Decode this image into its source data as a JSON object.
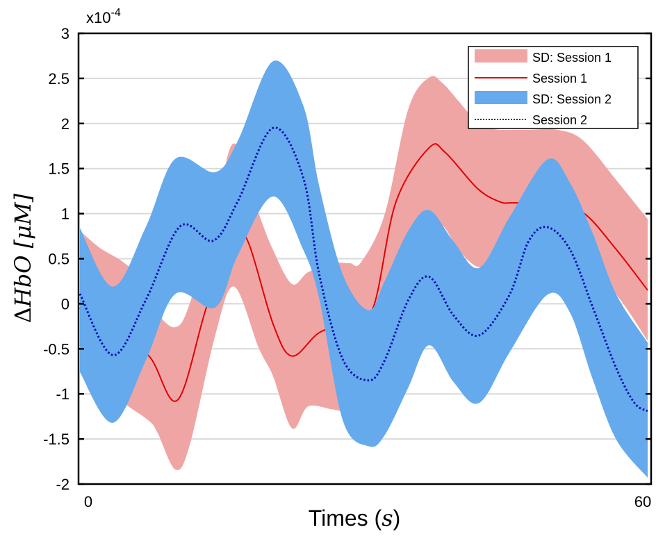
{
  "chart_data": {
    "type": "area",
    "title": "",
    "xlabel_main": "Times (",
    "xlabel_var": "s",
    "xlabel_close": ")",
    "ylabel_delta": "Δ",
    "ylabel_var": "HbO",
    "ylabel_unit": " [μM]",
    "y_multiplier_base": "x10",
    "y_multiplier_exp": "-4",
    "xlim": [
      0,
      60
    ],
    "ylim": [
      -2,
      3
    ],
    "xticks": [
      0,
      60
    ],
    "xtick_labels": [
      "0",
      "60"
    ],
    "yticks": [
      3,
      2.5,
      2,
      1.5,
      1,
      0.5,
      0,
      -0.5,
      -1,
      -1.5,
      -2
    ],
    "ytick_labels": [
      "3",
      "2.5",
      "2",
      "1.5",
      "1",
      "0.5",
      "0",
      "-0.5",
      "-1",
      "-1.5",
      "-2"
    ],
    "grid": "horizontal",
    "legend_position": "top-right",
    "legend": [
      "SD: Session 1",
      "Session 1",
      "SD: Session 2",
      "Session 2"
    ],
    "colors": {
      "sd1": "#f0a5a5",
      "s1": "#e00000",
      "sd2": "#65aaec",
      "s2": "#0a0ab0"
    },
    "bands": [
      {
        "name": "SD: Session 1",
        "x": [
          0,
          2.1,
          4.6,
          7.3,
          8.2,
          10.1,
          11.6,
          14.3,
          16.3,
          18.9,
          20.4,
          22.4,
          24.1,
          26.6,
          28.5,
          29.7,
          32.2,
          34.7,
          36.9,
          38.3,
          40.0,
          42.0,
          43.5,
          44.4,
          47.4,
          50.5,
          53.2,
          56.7,
          60
        ],
        "upper": [
          0.81,
          0.62,
          0.46,
          0.2,
          -0.1,
          -0.26,
          0.0,
          1.0,
          1.78,
          1.0,
          0.6,
          0.22,
          0.35,
          0.45,
          0.45,
          0.46,
          0.99,
          2.16,
          2.51,
          2.45,
          2.25,
          2.01,
          1.95,
          1.93,
          1.93,
          1.93,
          1.81,
          1.37,
          0.94
        ],
        "lower": [
          -0.76,
          -0.9,
          -1.1,
          -1.3,
          -1.43,
          -1.84,
          -1.57,
          -0.35,
          0.19,
          -0.49,
          -0.8,
          -1.38,
          -1.14,
          -1.17,
          -1.19,
          -1.0,
          -0.5,
          0.3,
          0.8,
          0.87,
          0.6,
          0.41,
          0.49,
          0.55,
          0.6,
          0.55,
          0.45,
          0.1,
          -0.41
        ]
      },
      {
        "name": "SD: Session 2",
        "x": [
          0,
          3.5,
          7.0,
          10.1,
          14.3,
          16.7,
          20.4,
          23.6,
          25.3,
          27.8,
          30.5,
          32.2,
          34.7,
          36.9,
          39.5,
          42.2,
          45.4,
          49.4,
          51.8,
          54.2,
          56.7,
          60
        ],
        "upper": [
          0.84,
          0.19,
          0.86,
          1.61,
          1.46,
          1.81,
          2.69,
          2.2,
          1.3,
          0.32,
          -0.07,
          0.25,
          0.81,
          1.04,
          0.69,
          0.4,
          0.96,
          1.6,
          1.34,
          0.78,
          0.1,
          -0.43
        ],
        "lower": [
          -0.76,
          -1.32,
          -0.62,
          0.11,
          -0.04,
          0.54,
          1.19,
          0.6,
          0.05,
          -1.3,
          -1.58,
          -1.46,
          -0.93,
          -0.46,
          -0.87,
          -1.1,
          -0.54,
          0.1,
          -0.1,
          -0.84,
          -1.51,
          -1.93
        ]
      }
    ],
    "series": [
      {
        "name": "Session 1",
        "x": [
          0,
          3.5,
          7.3,
          10.3,
          13.4,
          16.3,
          17.8,
          20.4,
          22.4,
          25.3,
          28.5,
          31.0,
          33.4,
          36.9,
          38.6,
          42.0,
          44.4,
          46.0,
          50.0,
          53.2,
          56.7,
          60
        ],
        "y": [
          -0.05,
          -0.35,
          -0.58,
          -1.07,
          -0.03,
          0.75,
          0.68,
          -0.22,
          -0.58,
          -0.32,
          -0.2,
          -0.04,
          1.13,
          1.73,
          1.68,
          1.28,
          1.13,
          1.12,
          1.1,
          1.01,
          0.6,
          0.15
        ]
      },
      {
        "name": "Session 2",
        "x": [
          0,
          3.5,
          7.0,
          10.6,
          14.1,
          16.7,
          20.4,
          23.6,
          25.3,
          27.8,
          30.5,
          32.2,
          34.7,
          36.9,
          39.5,
          42.2,
          45.4,
          47.4,
          49.4,
          51.8,
          54.2,
          56.7,
          58.6,
          60
        ],
        "y": [
          0.11,
          -0.57,
          0.05,
          0.86,
          0.7,
          1.14,
          1.95,
          1.4,
          0.32,
          -0.62,
          -0.85,
          -0.63,
          0.04,
          0.3,
          -0.13,
          -0.35,
          0.1,
          0.69,
          0.85,
          0.6,
          -0.04,
          -0.72,
          -1.1,
          -1.19
        ]
      }
    ]
  }
}
